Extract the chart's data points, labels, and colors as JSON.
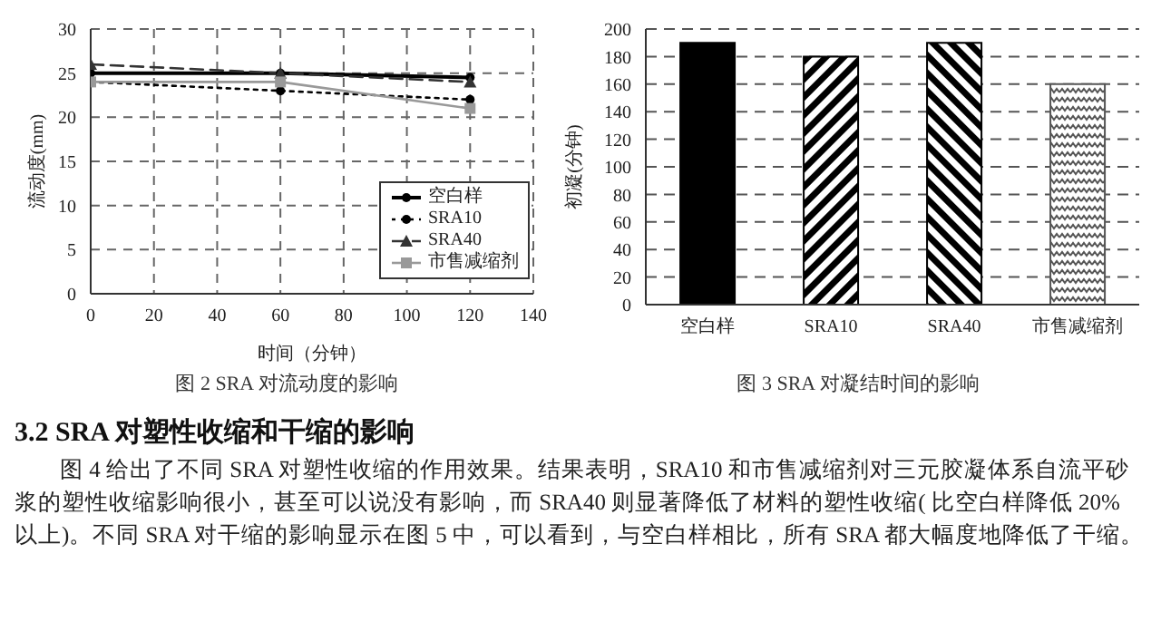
{
  "chart_data": [
    {
      "type": "line",
      "title": "图 2 SRA 对流动度的影响",
      "xlabel": "时间（分钟）",
      "ylabel": "流动度(mm)",
      "x": [
        0,
        60,
        120
      ],
      "xlim": [
        0,
        140
      ],
      "xticks": [
        0,
        20,
        40,
        60,
        80,
        100,
        120,
        140
      ],
      "ylim": [
        0,
        30
      ],
      "yticks": [
        0,
        5,
        10,
        15,
        20,
        25,
        30
      ],
      "grid": true,
      "legend": "right",
      "series": [
        {
          "name": "空白样",
          "color": "#000000",
          "values": [
            25,
            25,
            24.5
          ],
          "marker": "circle",
          "line_style": "solid"
        },
        {
          "name": "SRA10",
          "color": "#000000",
          "values": [
            24,
            23,
            22
          ],
          "marker": "circle",
          "line_style": "dotted"
        },
        {
          "name": "SRA40",
          "color": "#333333",
          "values": [
            26,
            25,
            24
          ],
          "marker": "triangle",
          "line_style": "dashed"
        },
        {
          "name": "市售减缩剂",
          "color": "#999999",
          "values": [
            24,
            24,
            21
          ],
          "marker": "square",
          "line_style": "solid"
        }
      ]
    },
    {
      "type": "bar",
      "title": "图 3 SRA 对凝结时间的影响",
      "ylabel": "初凝(分钟)",
      "categories": [
        "空白样",
        "SRA10",
        "SRA40",
        "市售减缩剂"
      ],
      "values": [
        190,
        180,
        190,
        160
      ],
      "colors": [
        "#000000",
        "#000000",
        "#000000",
        "#555555"
      ],
      "ylim": [
        0,
        200
      ],
      "yticks": [
        0,
        20,
        40,
        60,
        80,
        100,
        120,
        140,
        160,
        180,
        200
      ],
      "grid": "y",
      "annotations": [
        "3.2 SRA 对塑性收缩和干缩的影响",
        "图 4 给出了不同 SRA 对塑性收缩的作用效果。结果表明，SRA10 和市售减缩剂对三元胶凝体系自流平砂浆的塑性收缩影响很小，甚至可以说没有影响，而 SRA40 则显著降低了材料的塑性收缩( 比空白样降低 20% 以上)。不同 SRA 对干缩的影响显示在图 5 中，可以看到，与空白样相比，所有 SRA 都大幅度地降低了干缩。"
      ]
    }
  ]
}
